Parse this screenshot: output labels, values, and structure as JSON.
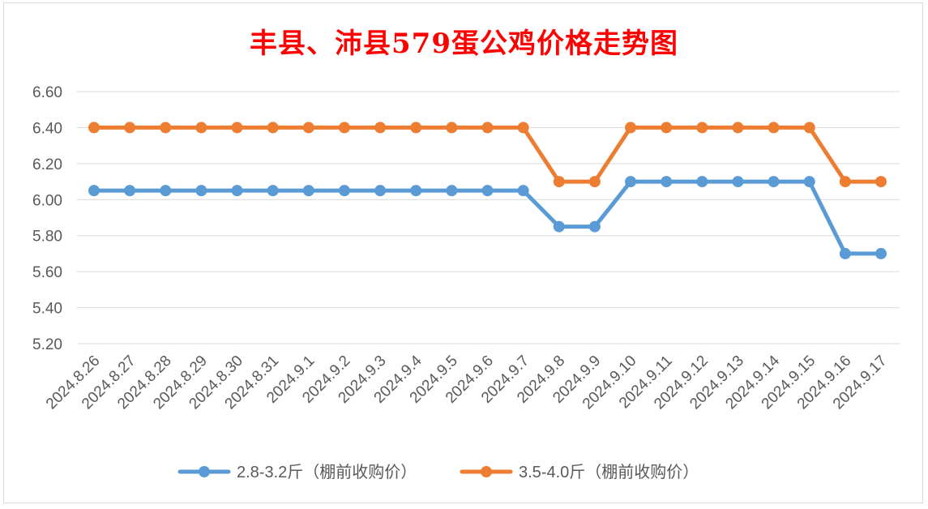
{
  "chart_data": {
    "type": "line",
    "title": "丰县、沛县579蛋公鸡价格走势图",
    "categories": [
      "2024.8.26",
      "2024.8.27",
      "2024.8.28",
      "2024.8.29",
      "2024.8.30",
      "2024.8.31",
      "2024.9.1",
      "2024.9.2",
      "2024.9.3",
      "2024.9.4",
      "2024.9.5",
      "2024.9.6",
      "2024.9.7",
      "2024.9.8",
      "2024.9.9",
      "2024.9.10",
      "2024.9.11",
      "2024.9.12",
      "2024.9.13",
      "2024.9.14",
      "2024.9.15",
      "2024.9.16",
      "2024.9.17"
    ],
    "series": [
      {
        "name": "2.8-3.2斤（棚前收购价）",
        "color": "#5b9bd5",
        "values": [
          6.05,
          6.05,
          6.05,
          6.05,
          6.05,
          6.05,
          6.05,
          6.05,
          6.05,
          6.05,
          6.05,
          6.05,
          6.05,
          5.85,
          5.85,
          6.1,
          6.1,
          6.1,
          6.1,
          6.1,
          6.1,
          5.7,
          5.7
        ]
      },
      {
        "name": "3.5-4.0斤（棚前收购价）",
        "color": "#ed7d31",
        "values": [
          6.4,
          6.4,
          6.4,
          6.4,
          6.4,
          6.4,
          6.4,
          6.4,
          6.4,
          6.4,
          6.4,
          6.4,
          6.4,
          6.1,
          6.1,
          6.4,
          6.4,
          6.4,
          6.4,
          6.4,
          6.4,
          6.1,
          6.1
        ]
      }
    ],
    "ylim": [
      5.2,
      6.6
    ],
    "yticks": [
      "5.20",
      "5.40",
      "5.60",
      "5.80",
      "6.00",
      "6.20",
      "6.40",
      "6.60"
    ],
    "grid": true,
    "legend": "bottom",
    "xlabel": "",
    "ylabel": ""
  }
}
